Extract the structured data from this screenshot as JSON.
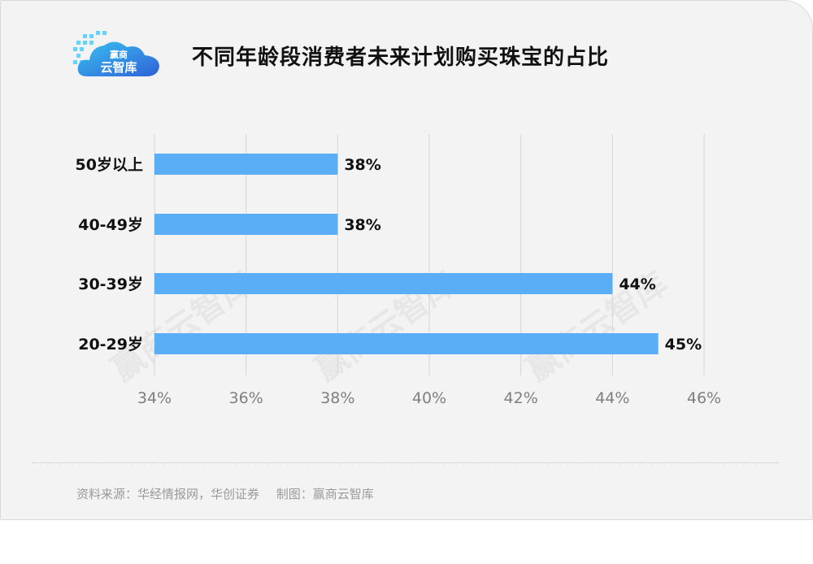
{
  "title": "不同年龄段消费者未来计划购买珠宝的占比",
  "logo": {
    "text_top": "赢商",
    "text_bottom": "云智库"
  },
  "watermark": "赢商云智库",
  "footer": {
    "source": "资料来源：华经情报网，华创证券",
    "made_by": "制图：赢商云智库"
  },
  "colors": {
    "bar": "#5aaef5",
    "grid": "#d6d6d6",
    "tick": "#7f7f7f",
    "label": "#111111"
  },
  "chart_data": {
    "type": "bar",
    "orientation": "horizontal",
    "categories": [
      "50岁以上",
      "40-49岁",
      "30-39岁",
      "20-29岁"
    ],
    "values": [
      38,
      38,
      44,
      45
    ],
    "data_labels": [
      "38%",
      "38%",
      "44%",
      "45%"
    ],
    "xlim": [
      34,
      46
    ],
    "xticks": [
      34,
      36,
      38,
      40,
      42,
      44,
      46
    ],
    "xtick_labels": [
      "34%",
      "36%",
      "38%",
      "40%",
      "42%",
      "44%",
      "46%"
    ],
    "grid": true,
    "legend": false
  }
}
